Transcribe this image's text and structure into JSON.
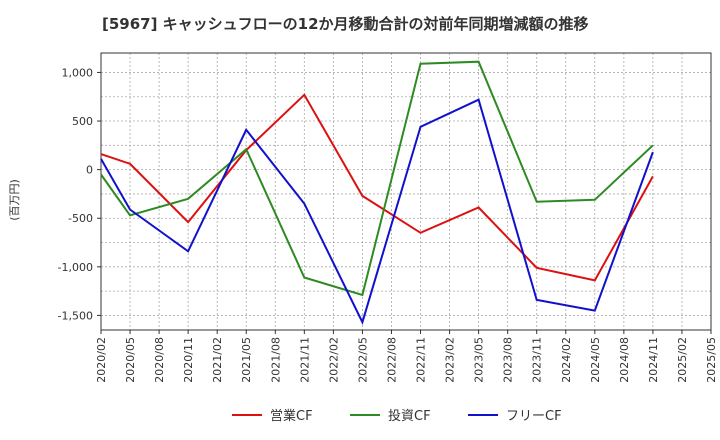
{
  "chart_data": {
    "type": "line",
    "title": "[5967]  キャッシュフローの12か月移動合計の対前年同期増減額の推移",
    "ylabel": "(百万円)",
    "xlabel": "",
    "ylim": [
      -1650,
      1200
    ],
    "yticks": [
      1000,
      500,
      0,
      -500,
      -1000,
      -1500
    ],
    "ytick_labels": [
      "1,000",
      "500",
      "0",
      "-500",
      "-1,000",
      "-1,500"
    ],
    "categories": [
      "2020/02",
      "2020/05",
      "2020/08",
      "2020/11",
      "2021/02",
      "2021/05",
      "2021/08",
      "2021/11",
      "2022/02",
      "2022/05",
      "2022/08",
      "2022/11",
      "2023/02",
      "2023/05",
      "2023/08",
      "2023/11",
      "2024/02",
      "2024/05",
      "2024/08",
      "2024/11",
      "2025/02",
      "2025/05"
    ],
    "grid": true,
    "legend_position": "bottom",
    "series": [
      {
        "name": "営業CF",
        "color": "#dd1111",
        "values": [
          160,
          60,
          null,
          -540,
          null,
          200,
          null,
          770,
          null,
          -270,
          null,
          -650,
          null,
          -390,
          null,
          -1010,
          null,
          -1140,
          null,
          -70,
          null,
          null
        ]
      },
      {
        "name": "投資CF",
        "color": "#2e8b22",
        "values": [
          -50,
          -470,
          null,
          -300,
          null,
          210,
          null,
          -1110,
          null,
          -1290,
          null,
          1090,
          null,
          1110,
          null,
          -330,
          null,
          -310,
          null,
          250,
          null,
          null
        ]
      },
      {
        "name": "フリーCF",
        "color": "#1111cc",
        "values": [
          110,
          -410,
          null,
          -840,
          null,
          410,
          null,
          -350,
          null,
          -1570,
          null,
          440,
          null,
          720,
          null,
          -1340,
          null,
          -1450,
          null,
          180,
          null,
          null
        ]
      }
    ]
  }
}
